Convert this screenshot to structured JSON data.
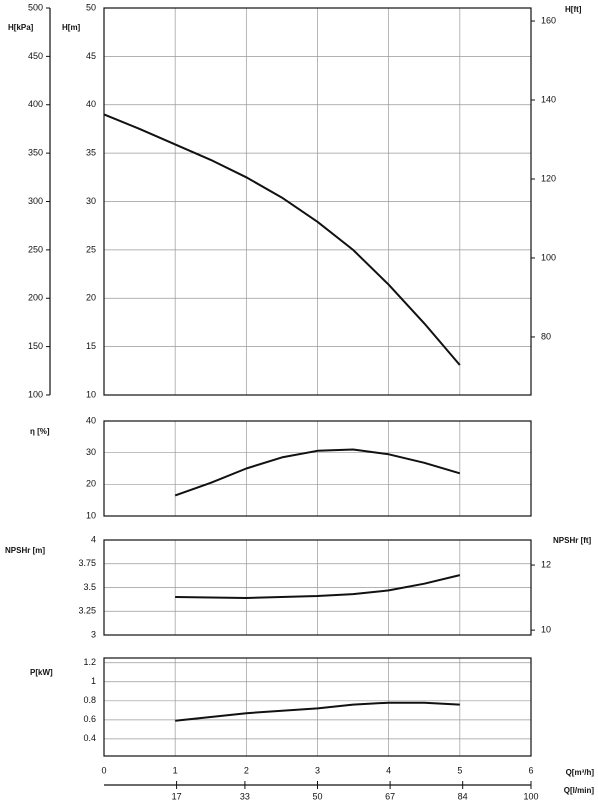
{
  "chart_data": [
    {
      "type": "line",
      "ylabel": "H[m]",
      "ylim": [
        10,
        50
      ],
      "yticks": [
        10,
        15,
        20,
        25,
        30,
        35,
        40,
        45,
        50
      ],
      "y3label": "H[kPa]",
      "y3lim": [
        100,
        500
      ],
      "y3ticks": [
        100,
        150,
        200,
        250,
        300,
        350,
        400,
        450,
        500
      ],
      "y2label": "H[ft]",
      "y2lim": [
        65.3,
        163.3
      ],
      "y2ticks": [
        80,
        100,
        120,
        140,
        160
      ],
      "xlim": [
        0,
        6
      ],
      "xticks": [
        0,
        1,
        2,
        3,
        4,
        5,
        6
      ],
      "grid": true,
      "x": [
        0,
        0.5,
        1,
        1.5,
        2,
        2.5,
        3,
        3.5,
        4,
        4.5,
        5
      ],
      "series": [
        {
          "color": "#111111",
          "values": [
            39,
            37.5,
            35.9,
            34.3,
            32.5,
            30.4,
            27.9,
            25,
            21.4,
            17.4,
            13.1
          ]
        }
      ]
    },
    {
      "type": "line",
      "ylabel": "η [%]",
      "ylim": [
        10,
        40
      ],
      "yticks": [
        10,
        20,
        30,
        40
      ],
      "xlim": [
        0,
        6
      ],
      "xticks": [
        0,
        1,
        2,
        3,
        4,
        5,
        6
      ],
      "grid": true,
      "x": [
        1,
        1.5,
        2,
        2.5,
        3,
        3.5,
        4,
        4.5,
        5
      ],
      "series": [
        {
          "color": "#111111",
          "values": [
            16.5,
            20.5,
            25,
            28.5,
            30.6,
            31,
            29.5,
            26.8,
            23.5
          ]
        }
      ]
    },
    {
      "type": "line",
      "ylabel": "NPSHr [m]",
      "ylim": [
        3,
        4
      ],
      "yticks": [
        3,
        3.25,
        3.5,
        3.75,
        4
      ],
      "y2label": "NPSHr [ft]",
      "y2lim": [
        9.85,
        12.77
      ],
      "y2ticks": [
        10,
        12
      ],
      "xlim": [
        0,
        6
      ],
      "xticks": [
        0,
        1,
        2,
        3,
        4,
        5,
        6
      ],
      "grid": true,
      "x": [
        1,
        2,
        3,
        3.5,
        4,
        4.5,
        5
      ],
      "series": [
        {
          "color": "#111111",
          "values": [
            3.4,
            3.39,
            3.41,
            3.43,
            3.47,
            3.54,
            3.63
          ]
        }
      ]
    },
    {
      "type": "line",
      "ylabel": "P[kW]",
      "ylim": [
        0.22,
        1.25
      ],
      "yticks": [
        0.4,
        0.6,
        0.8,
        1,
        1.2
      ],
      "xlim": [
        0,
        6
      ],
      "xticks": [
        0,
        1,
        2,
        3,
        4,
        5,
        6
      ],
      "grid": true,
      "xlabel": "Q[m³/h]",
      "x2label": "Q[l/min]",
      "x2lim": [
        0,
        100
      ],
      "x2ticks": [
        17,
        33,
        50,
        67,
        84,
        100
      ],
      "x": [
        1,
        2,
        3,
        3.5,
        4,
        4.5,
        5
      ],
      "series": [
        {
          "color": "#111111",
          "values": [
            0.59,
            0.67,
            0.72,
            0.76,
            0.78,
            0.78,
            0.76
          ]
        }
      ]
    }
  ]
}
